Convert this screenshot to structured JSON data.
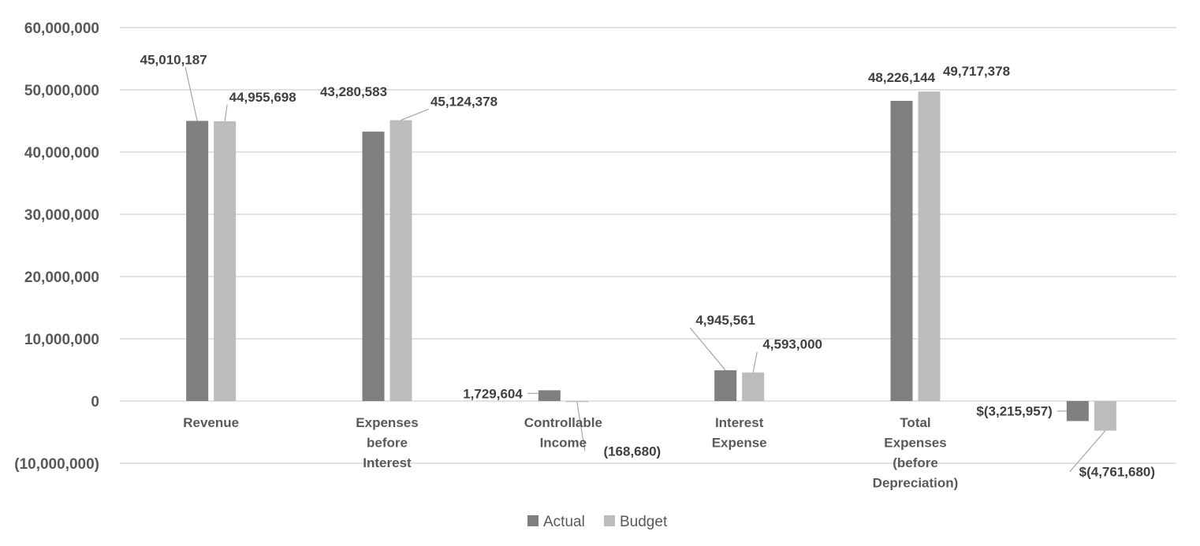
{
  "chart_data": {
    "type": "bar",
    "title": "",
    "xlabel": "",
    "ylabel": "",
    "ylim": [
      -10000000,
      60000000
    ],
    "yticks": [
      -10000000,
      0,
      10000000,
      20000000,
      30000000,
      40000000,
      50000000,
      60000000
    ],
    "ytick_labels": [
      "(10,000,000)",
      "0",
      "10,000,000",
      "20,000,000",
      "30,000,000",
      "40,000,000",
      "50,000,000",
      "60,000,000"
    ],
    "grid": true,
    "categories": [
      [
        "Revenue"
      ],
      [
        "Expenses",
        "before",
        "Interest"
      ],
      [
        "Controllable",
        "Income"
      ],
      [
        "Interest",
        "Expense"
      ],
      [
        "Total",
        "Expenses",
        "(before",
        "Depreciation)"
      ],
      [
        ""
      ]
    ],
    "series": [
      {
        "name": "Actual",
        "color": "#7f7f82",
        "values": [
          45010187,
          43280583,
          1729604,
          4945561,
          48226144,
          -3215957
        ],
        "labels": [
          "45,010,187",
          "43,280,583",
          "1,729,604",
          "4,945,561",
          "48,226,144",
          "$(3,215,957)"
        ]
      },
      {
        "name": "Budget",
        "color": "#bcbcbf",
        "values": [
          44955698,
          45124378,
          -168680,
          4593000,
          49717378,
          -4761680
        ],
        "labels": [
          "44,955,698",
          "45,124,378",
          "(168,680)",
          "4,593,000",
          "49,717,378",
          "$(4,761,680)"
        ]
      }
    ],
    "legend": "bottom"
  }
}
